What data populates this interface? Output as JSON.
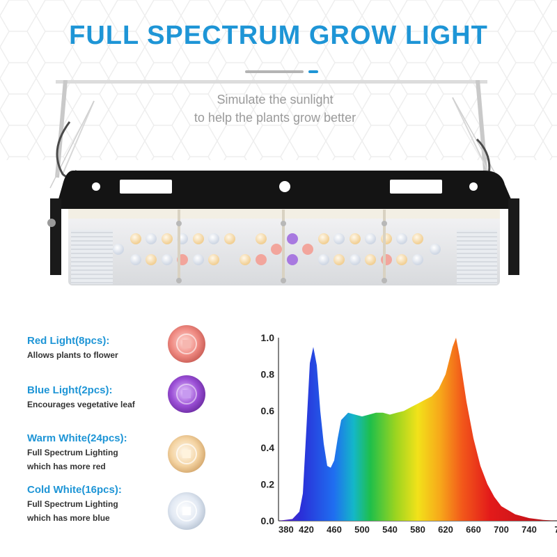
{
  "title": "FULL SPECTRUM GROW LIGHT",
  "tagline": [
    "Simulate the sunlight",
    "to help the plants grow better"
  ],
  "features": [
    {
      "title": "Red Light(8pcs):",
      "desc": [
        "Allows plants to flower"
      ],
      "color": "#e8736e"
    },
    {
      "title": "Blue Light(2pcs):",
      "desc": [
        "Encourages vegetative leaf"
      ],
      "color": "#8a3fc4"
    },
    {
      "title": "Warm White(24pcs):",
      "desc": [
        "Full Spectrum Lighting",
        "which has more red"
      ],
      "color": "#f3c98a"
    },
    {
      "title": "Cold White(16pcs):",
      "desc": [
        "Full Spectrum Lighting",
        "which has more blue"
      ],
      "color": "#dfe8f5"
    }
  ],
  "colors": {
    "accent": "#1e95d6",
    "text": "#333333",
    "subtle": "#9a9a9a"
  },
  "chart_data": {
    "type": "area",
    "title": "",
    "xlabel": "",
    "ylabel": "",
    "xlim": [
      380,
      780
    ],
    "ylim": [
      0,
      1.0
    ],
    "x_ticks": [
      "380",
      "420",
      "460",
      "500",
      "540",
      "580",
      "620",
      "660",
      "700",
      "740",
      "7"
    ],
    "y_ticks": [
      "0.0",
      "0.2",
      "0.4",
      "0.6",
      "0.8",
      "1.0"
    ],
    "grid": false,
    "fill": "visible-spectrum gradient",
    "series": [
      {
        "x": [
          380,
          400,
          410,
          415,
          420,
          425,
          430,
          435,
          440,
          445,
          450,
          455,
          460,
          465,
          470,
          480,
          490,
          500,
          510,
          520,
          530,
          540,
          550,
          560,
          570,
          580,
          590,
          600,
          610,
          620,
          630,
          635,
          640,
          650,
          660,
          670,
          680,
          690,
          700,
          720,
          740,
          760,
          780
        ],
        "y": [
          0.0,
          0.01,
          0.05,
          0.15,
          0.5,
          0.86,
          0.95,
          0.85,
          0.6,
          0.42,
          0.3,
          0.29,
          0.33,
          0.45,
          0.55,
          0.59,
          0.58,
          0.57,
          0.58,
          0.59,
          0.59,
          0.58,
          0.59,
          0.6,
          0.62,
          0.64,
          0.66,
          0.68,
          0.72,
          0.8,
          0.95,
          1.0,
          0.9,
          0.65,
          0.45,
          0.3,
          0.2,
          0.13,
          0.08,
          0.035,
          0.015,
          0.005,
          0.0
        ]
      }
    ]
  }
}
